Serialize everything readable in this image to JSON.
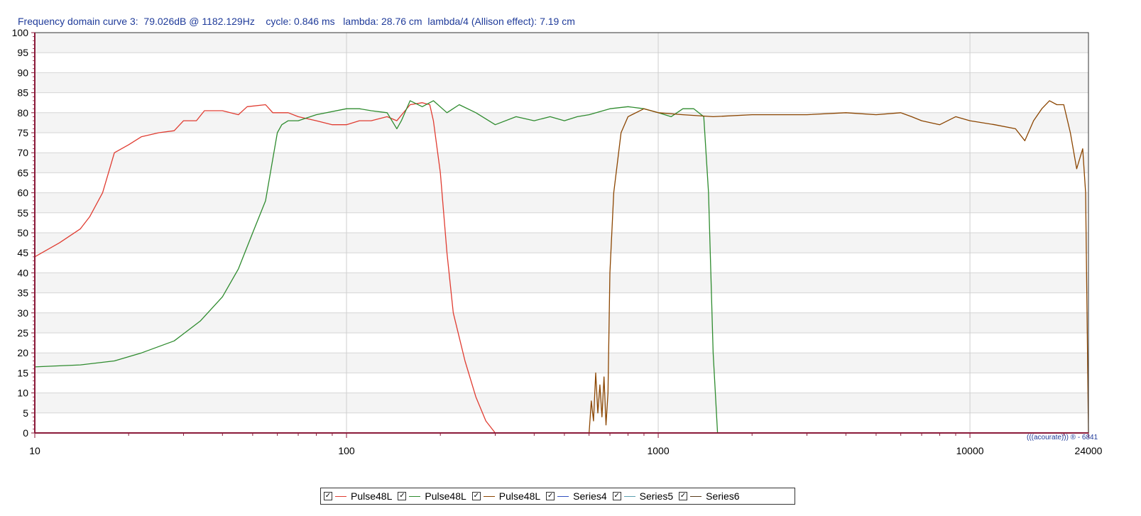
{
  "header": {
    "text": "Frequency domain curve 3:  79.026dB @ 1182.129Hz    cycle: 0.846 ms   lambda: 28.76 cm  lambda/4 (Allison effect): 7.19 cm"
  },
  "watermark": "(((acourate))) ® - 6841",
  "chart_data": {
    "type": "line",
    "x_scale": "log",
    "xlim": [
      10,
      24000
    ],
    "ylim": [
      0,
      100
    ],
    "x_ticks": [
      "10",
      "100",
      "1000",
      "10000",
      "24000"
    ],
    "y_ticks": [
      "0",
      "5",
      "10",
      "15",
      "20",
      "25",
      "30",
      "35",
      "40",
      "45",
      "50",
      "55",
      "60",
      "65",
      "70",
      "75",
      "80",
      "85",
      "90",
      "95",
      "100"
    ],
    "grid": true,
    "legend_position": "bottom-center",
    "series": [
      {
        "name": "Pulse48L",
        "color": "#e03c31",
        "points": [
          [
            10,
            44
          ],
          [
            12,
            47.5
          ],
          [
            14,
            51
          ],
          [
            15,
            54
          ],
          [
            16.5,
            60
          ],
          [
            18,
            70
          ],
          [
            20,
            72
          ],
          [
            22,
            74
          ],
          [
            25,
            75
          ],
          [
            28,
            75.5
          ],
          [
            30,
            78
          ],
          [
            33,
            78
          ],
          [
            35,
            80.5
          ],
          [
            40,
            80.5
          ],
          [
            45,
            79.5
          ],
          [
            48,
            81.5
          ],
          [
            55,
            82
          ],
          [
            58,
            80
          ],
          [
            65,
            80
          ],
          [
            70,
            79
          ],
          [
            80,
            78
          ],
          [
            90,
            77
          ],
          [
            100,
            77
          ],
          [
            110,
            78
          ],
          [
            120,
            78
          ],
          [
            135,
            79
          ],
          [
            145,
            78
          ],
          [
            160,
            82
          ],
          [
            175,
            82.5
          ],
          [
            185,
            82
          ],
          [
            190,
            78
          ],
          [
            200,
            65
          ],
          [
            210,
            45
          ],
          [
            220,
            30
          ],
          [
            240,
            18
          ],
          [
            260,
            9
          ],
          [
            280,
            3
          ],
          [
            300,
            0
          ]
        ]
      },
      {
        "name": "Pulse48L",
        "color": "#2e8b2e",
        "points": [
          [
            10,
            16.5
          ],
          [
            14,
            17
          ],
          [
            18,
            18
          ],
          [
            22,
            20
          ],
          [
            28,
            23
          ],
          [
            34,
            28
          ],
          [
            40,
            34
          ],
          [
            45,
            41
          ],
          [
            50,
            50
          ],
          [
            55,
            58
          ],
          [
            60,
            75
          ],
          [
            62,
            77
          ],
          [
            65,
            78
          ],
          [
            70,
            78
          ],
          [
            80,
            79.5
          ],
          [
            100,
            81
          ],
          [
            110,
            81
          ],
          [
            120,
            80.5
          ],
          [
            135,
            80
          ],
          [
            145,
            76
          ],
          [
            150,
            78
          ],
          [
            160,
            83
          ],
          [
            175,
            81.5
          ],
          [
            190,
            83
          ],
          [
            210,
            80
          ],
          [
            230,
            82
          ],
          [
            260,
            80
          ],
          [
            300,
            77
          ],
          [
            350,
            79
          ],
          [
            400,
            78
          ],
          [
            450,
            79
          ],
          [
            500,
            78
          ],
          [
            550,
            79
          ],
          [
            600,
            79.5
          ],
          [
            700,
            81
          ],
          [
            800,
            81.5
          ],
          [
            900,
            81
          ],
          [
            1000,
            80
          ],
          [
            1100,
            79
          ],
          [
            1200,
            81
          ],
          [
            1300,
            81
          ],
          [
            1400,
            79
          ],
          [
            1450,
            60
          ],
          [
            1500,
            20
          ],
          [
            1550,
            0
          ]
        ]
      },
      {
        "name": "Pulse48L",
        "color": "#8b4500",
        "points": [
          [
            600,
            0
          ],
          [
            610,
            8
          ],
          [
            620,
            3
          ],
          [
            630,
            15
          ],
          [
            640,
            5
          ],
          [
            650,
            12
          ],
          [
            660,
            4
          ],
          [
            670,
            14
          ],
          [
            680,
            2
          ],
          [
            690,
            10
          ],
          [
            700,
            40
          ],
          [
            720,
            60
          ],
          [
            760,
            75
          ],
          [
            800,
            79
          ],
          [
            900,
            81
          ],
          [
            1000,
            80
          ],
          [
            1200,
            79.5
          ],
          [
            1500,
            79
          ],
          [
            2000,
            79.5
          ],
          [
            3000,
            79.5
          ],
          [
            4000,
            80
          ],
          [
            5000,
            79.5
          ],
          [
            6000,
            80
          ],
          [
            6500,
            79
          ],
          [
            7000,
            78
          ],
          [
            8000,
            77
          ],
          [
            9000,
            79
          ],
          [
            10000,
            78
          ],
          [
            12000,
            77
          ],
          [
            14000,
            76
          ],
          [
            15000,
            73
          ],
          [
            16000,
            78
          ],
          [
            17000,
            81
          ],
          [
            18000,
            83
          ],
          [
            19000,
            82
          ],
          [
            20000,
            82
          ],
          [
            21000,
            75
          ],
          [
            22000,
            66
          ],
          [
            23000,
            71
          ],
          [
            23500,
            60
          ],
          [
            24000,
            0
          ]
        ]
      },
      {
        "name": "Series4",
        "color": "#3050c0",
        "points": []
      },
      {
        "name": "Series5",
        "color": "#5a9fb0",
        "points": []
      },
      {
        "name": "Series6",
        "color": "#5a3a1a",
        "points": []
      }
    ]
  }
}
